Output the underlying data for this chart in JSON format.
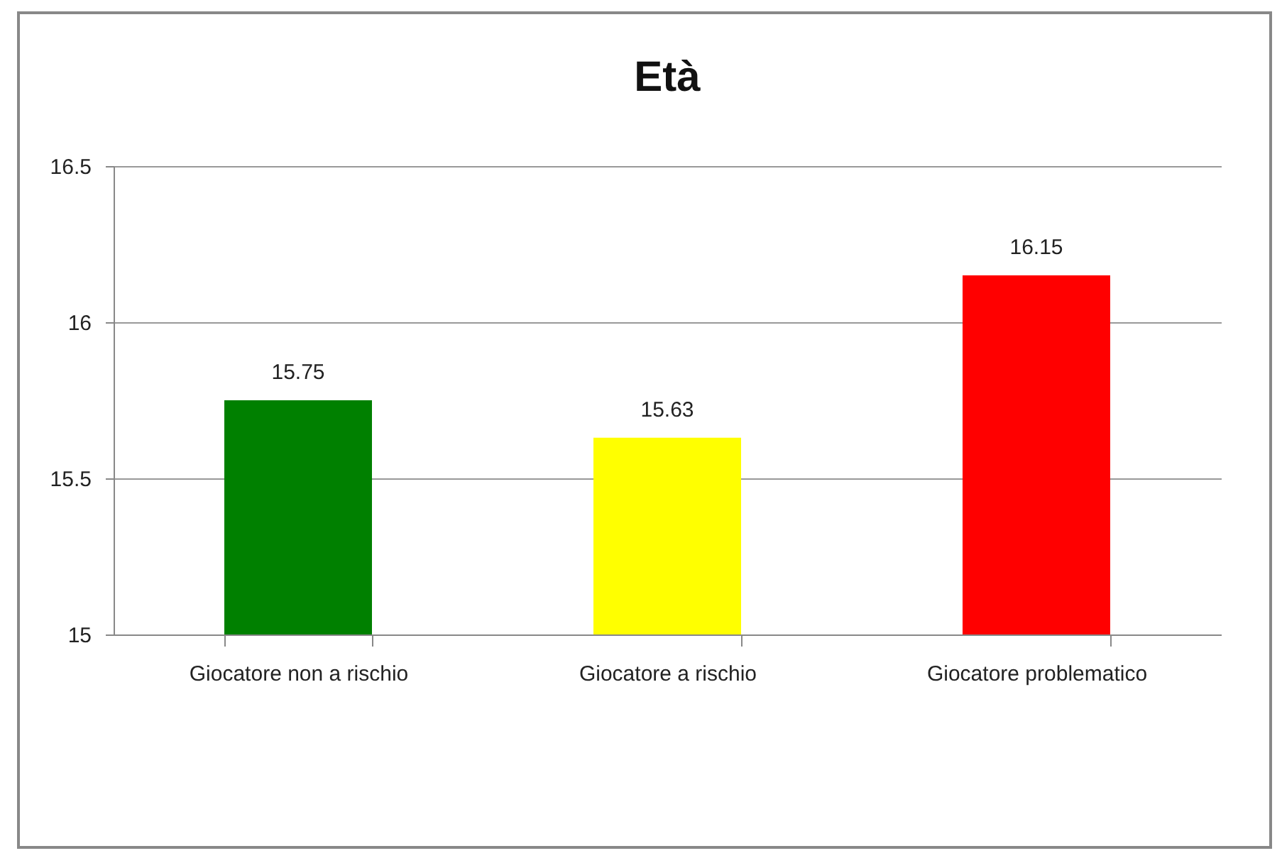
{
  "chart_data": {
    "type": "bar",
    "title": "Età",
    "categories": [
      "Giocatore non a rischio",
      "Giocatore a rischio",
      "Giocatore problematico"
    ],
    "values": [
      15.75,
      15.63,
      16.15
    ],
    "colors": [
      "#008000",
      "#ffff00",
      "#ff0000"
    ],
    "ylim": [
      15,
      16.5
    ],
    "yticks": [
      15,
      15.5,
      16,
      16.5
    ],
    "grid": "y",
    "data_labels": true
  }
}
